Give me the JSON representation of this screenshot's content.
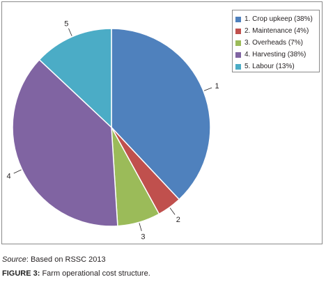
{
  "chart_data": {
    "type": "pie",
    "slices": [
      {
        "number": "1",
        "label": "1. Crop upkeep (38%)",
        "value": 38,
        "color": "#4f81bd"
      },
      {
        "number": "2",
        "label": "2. Maintenance (4%)",
        "value": 4,
        "color": "#c0504d"
      },
      {
        "number": "3",
        "label": "3. Overheads (7%)",
        "value": 7,
        "color": "#9bbb59"
      },
      {
        "number": "4",
        "label": "4. Harvesting (38%)",
        "value": 38,
        "color": "#8064a2"
      },
      {
        "number": "5",
        "label": "5. Labour (13%)",
        "value": 13,
        "color": "#4bacc6"
      }
    ],
    "legend_position": "top-right"
  },
  "source": {
    "key": "Source",
    "text": ": Based on RSSC 2013"
  },
  "caption": {
    "figure": "FIGURE 3:",
    "text": " Farm operational cost structure."
  }
}
